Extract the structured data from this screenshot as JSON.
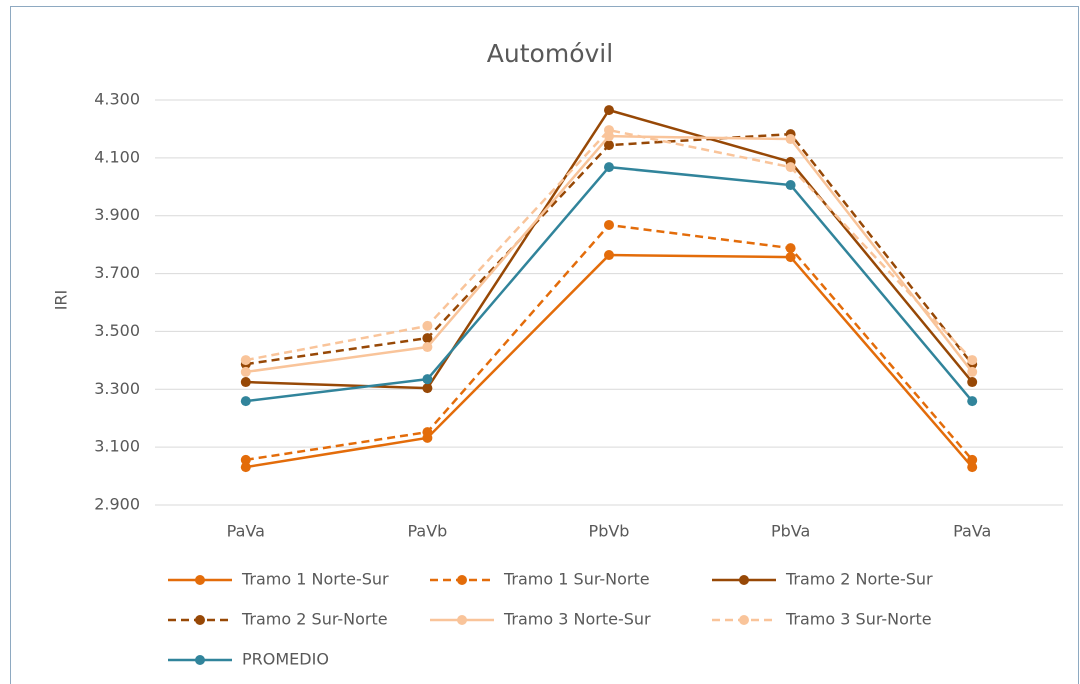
{
  "chart_data": {
    "type": "line",
    "title": "Automóvil",
    "y_label": "IRI",
    "categories": [
      "PaVa",
      "PaVb",
      "PbVb",
      "PbVa",
      "PaVa"
    ],
    "ylim": [
      2.9,
      4.3
    ],
    "yticks": [
      {
        "value": 2.9,
        "label": "2.900"
      },
      {
        "value": 3.1,
        "label": "3.100"
      },
      {
        "value": 3.3,
        "label": "3.300"
      },
      {
        "value": 3.5,
        "label": "3.500"
      },
      {
        "value": 3.7,
        "label": "3.700"
      },
      {
        "value": 3.9,
        "label": "3.900"
      },
      {
        "value": 4.1,
        "label": "4.100"
      },
      {
        "value": 4.3,
        "label": "4.300"
      }
    ],
    "grid": true,
    "series": [
      {
        "name": "Tramo 1 Norte-Sur",
        "color": "#e36c0a",
        "dashed": false,
        "values": [
          3.031,
          3.132,
          3.764,
          3.757,
          3.031
        ]
      },
      {
        "name": "Tramo 1 Sur-Norte",
        "color": "#e36c0a",
        "dashed": true,
        "values": [
          3.056,
          3.152,
          3.868,
          3.788,
          3.056
        ]
      },
      {
        "name": "Tramo 2 Norte-Sur",
        "color": "#974806",
        "dashed": false,
        "values": [
          3.325,
          3.304,
          4.265,
          4.086,
          3.325
        ]
      },
      {
        "name": "Tramo 2 Sur-Norte",
        "color": "#974806",
        "dashed": true,
        "values": [
          3.387,
          3.477,
          4.144,
          4.182,
          3.387
        ]
      },
      {
        "name": "Tramo 3 Norte-Sur",
        "color": "#f9c49a",
        "dashed": false,
        "values": [
          3.36,
          3.446,
          4.175,
          4.165,
          3.36
        ]
      },
      {
        "name": "Tramo 3 Sur-Norte",
        "color": "#f9c49a",
        "dashed": true,
        "values": [
          3.401,
          3.519,
          4.196,
          4.068,
          3.401
        ]
      },
      {
        "name": "PROMEDIO",
        "color": "#31849b",
        "dashed": false,
        "values": [
          3.259,
          3.335,
          4.068,
          4.006,
          3.259
        ]
      }
    ]
  }
}
